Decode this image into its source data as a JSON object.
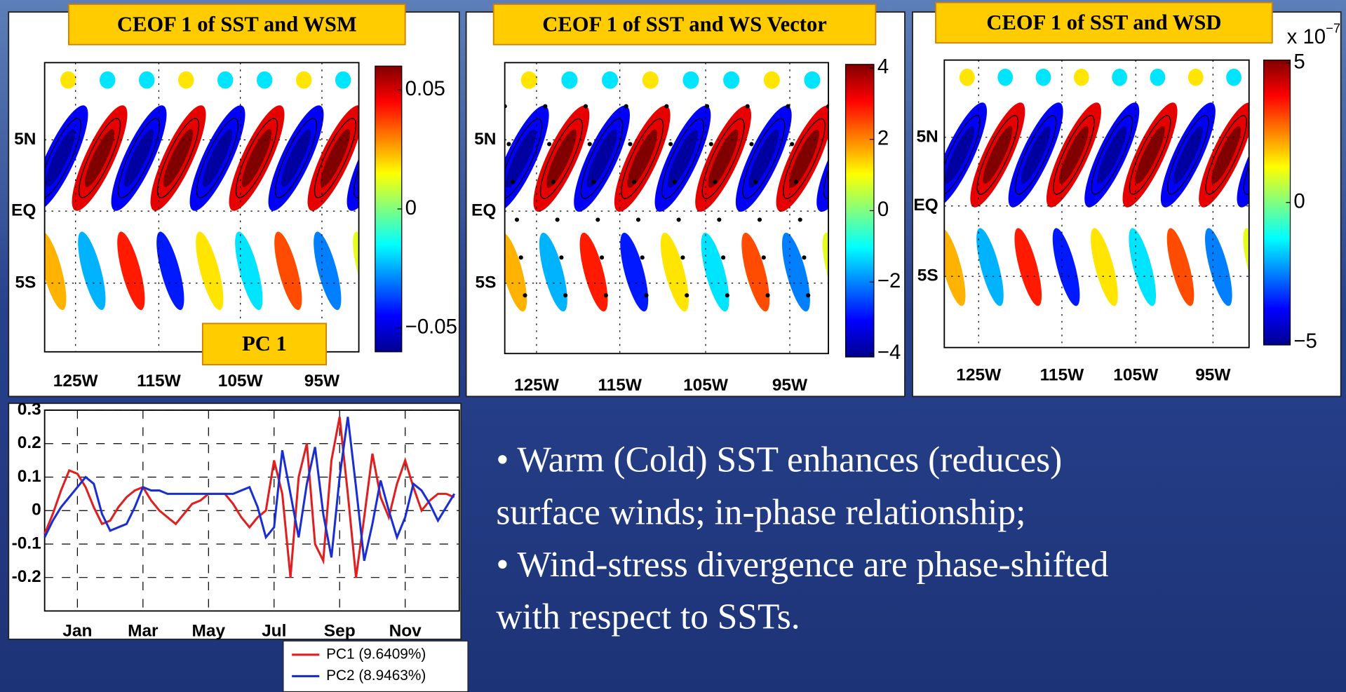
{
  "panels": [
    {
      "title": "CEOF 1 of SST and WSM",
      "lat_labels": [
        "5N",
        "EQ",
        "5S"
      ],
      "lon_labels": [
        "125W",
        "115W",
        "105W",
        "95W"
      ],
      "colorbar": {
        "lim": [
          -0.06,
          0.06
        ],
        "ticks": [
          0.05,
          0,
          {
            "value": -0.05,
            "label": "−0.05"
          }
        ]
      }
    },
    {
      "title": "CEOF 1 of SST and WS Vector",
      "lat_labels": [
        "5N",
        "EQ",
        "5S"
      ],
      "lon_labels": [
        "125W",
        "115W",
        "105W",
        "95W"
      ],
      "colorbar": {
        "lim": [
          -4.1,
          4.1
        ],
        "ticks": [
          4,
          2,
          0,
          {
            "value": -2,
            "label": "−2"
          },
          {
            "value": -4,
            "label": "−4"
          }
        ]
      }
    },
    {
      "title": "CEOF 1 of SST and WSD",
      "lat_labels": [
        "5N",
        "EQ",
        "5S"
      ],
      "lon_labels": [
        "125W",
        "115W",
        "105W",
        "95W"
      ],
      "colorbar": {
        "lim": [
          -5.1,
          5.1
        ],
        "ticks": [
          5,
          0,
          {
            "value": -5,
            "label": "−5"
          }
        ],
        "unit": {
          "base": "x 10",
          "exponent": "−7"
        }
      }
    }
  ],
  "pc_label": "PC 1",
  "chart_data": {
    "type": "line",
    "x": [
      0,
      0.25,
      0.5,
      0.75,
      1,
      1.25,
      1.5,
      1.75,
      2,
      2.25,
      2.5,
      2.75,
      3,
      3.25,
      3.5,
      3.75,
      4,
      4.25,
      4.5,
      4.75,
      5,
      5.25,
      5.5,
      5.75,
      6,
      6.25,
      6.5,
      6.75,
      7,
      7.25,
      7.5,
      7.75,
      8,
      8.25,
      8.5,
      8.75,
      9,
      9.25,
      9.5,
      9.75,
      10,
      10.25,
      10.5,
      10.75,
      11,
      11.25,
      11.5,
      11.75,
      12,
      12.25,
      12.5
    ],
    "series": [
      {
        "name": "PC1 (9.6409%)",
        "color": "#e02020",
        "values": [
          -0.07,
          -0.01,
          0.06,
          0.12,
          0.11,
          0.07,
          0.01,
          -0.04,
          -0.03,
          0.01,
          0.04,
          0.06,
          0.07,
          0.03,
          0,
          -0.02,
          -0.04,
          -0.01,
          0.02,
          0.03,
          0.05,
          0.05,
          0.05,
          0.02,
          -0.02,
          -0.05,
          -0.02,
          0,
          0.15,
          0.05,
          -0.2,
          0.1,
          0.2,
          -0.1,
          -0.15,
          0.15,
          0.28,
          0.05,
          -0.2,
          -0.02,
          0.17,
          0.04,
          -0.02,
          0.08,
          0.15,
          0.07,
          0,
          0.03,
          0.05,
          0.05,
          0.04
        ]
      },
      {
        "name": "PC2 (8.9463%)",
        "color": "#1a2fd0",
        "values": [
          -0.08,
          -0.03,
          0.01,
          0.04,
          0.07,
          0.1,
          0.08,
          -0.01,
          -0.06,
          -0.05,
          -0.04,
          0.01,
          0.07,
          0.06,
          0.06,
          0.05,
          0.05,
          0.05,
          0.05,
          0.05,
          0.05,
          0.05,
          0.05,
          0.05,
          0.06,
          0.07,
          0.01,
          -0.08,
          -0.05,
          0.18,
          0.05,
          -0.08,
          0.08,
          0.19,
          -0.01,
          -0.14,
          0.1,
          0.28,
          0.07,
          -0.15,
          -0.04,
          0.09,
          0,
          -0.08,
          -0.02,
          0.08,
          0.06,
          0.02,
          -0.03,
          0.01,
          0.05
        ]
      }
    ],
    "xlim": [
      0,
      12.65
    ],
    "xticks": [
      {
        "value": 1,
        "label": "Jan"
      },
      {
        "value": 3,
        "label": "Mar"
      },
      {
        "value": 5,
        "label": "May"
      },
      {
        "value": 7,
        "label": "Jul"
      },
      {
        "value": 9,
        "label": "Sep"
      },
      {
        "value": 11,
        "label": "Nov"
      }
    ],
    "ylim": [
      -0.3,
      0.3
    ],
    "yticks": [
      0.3,
      0.2,
      0.1,
      0,
      -0.1,
      -0.2
    ],
    "grid": true,
    "legend": "below-right"
  },
  "text_lines": [
    "• Warm (Cold) SST enhances (reduces)",
    "surface winds; in-phase relationship;",
    "• Wind-stress divergence are phase-shifted",
    "with respect to SSTs."
  ]
}
